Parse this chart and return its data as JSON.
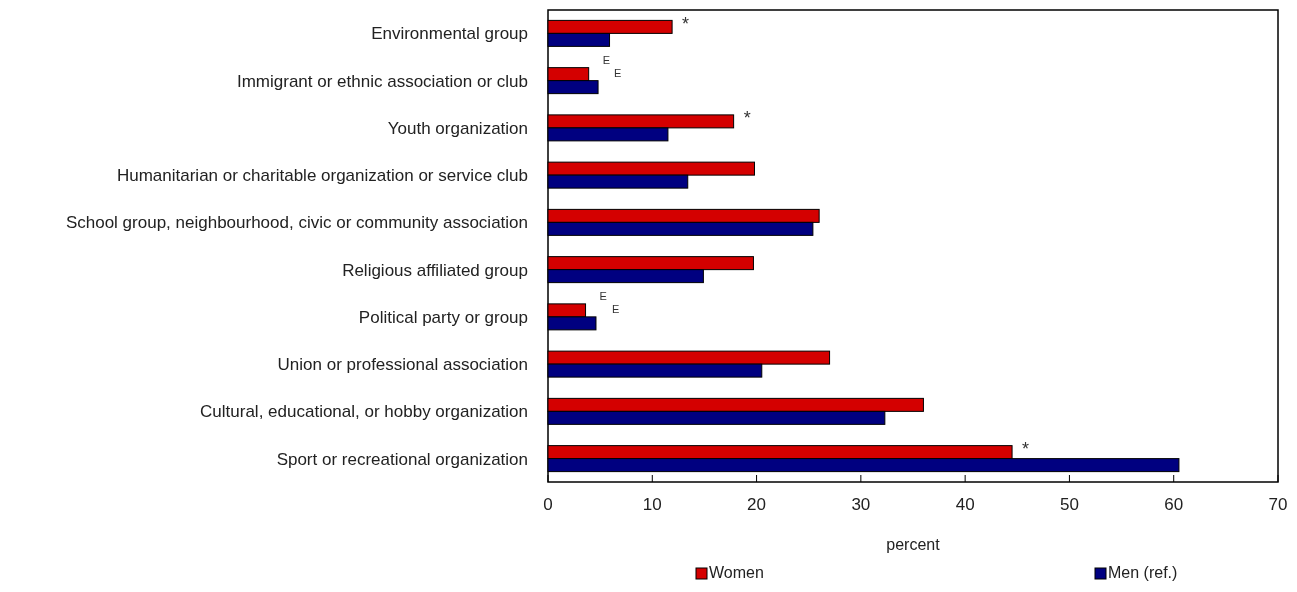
{
  "chart_data": {
    "type": "bar",
    "orientation": "horizontal",
    "categories": [
      "Environmental group",
      "Immigrant or ethnic association or club",
      "Youth organization",
      "Humanitarian or charitable organization or service club",
      "School group, neighbourhood, civic or community association",
      "Religious affiliated group",
      "Political party or group",
      "Union or professional association",
      "Cultural, educational, or hobby organization",
      "Sport or recreational organization"
    ],
    "series": [
      {
        "name": "Women",
        "color": "#d40000",
        "values": [
          11.9,
          3.9,
          17.8,
          19.8,
          26.0,
          19.7,
          3.6,
          27.0,
          36.0,
          44.5
        ]
      },
      {
        "name": "Men (ref.)",
        "color": "#000080",
        "values": [
          5.9,
          4.8,
          11.5,
          13.4,
          25.4,
          14.9,
          4.6,
          20.5,
          32.3,
          60.5
        ]
      }
    ],
    "xlim": [
      0,
      70
    ],
    "xticks": [
      0,
      10,
      20,
      30,
      40,
      50,
      60,
      70
    ],
    "xlabel": "percent",
    "legend": "bottom",
    "grid": false,
    "annotations": [
      {
        "text": "*",
        "x": 11.9,
        "y": "Environmental group"
      },
      {
        "text": "E",
        "x": 3.9,
        "y": "Immigrant or ethnic association or club"
      },
      {
        "text": "E",
        "x": 4.8,
        "y": "Immigrant or ethnic association or club"
      },
      {
        "text": "*",
        "x": 17.8,
        "y": "Youth organization"
      },
      {
        "text": "E",
        "x": 3.6,
        "y": "Political party or group"
      },
      {
        "text": "E",
        "x": 4.6,
        "y": "Political party or group"
      },
      {
        "text": "*",
        "x": 44.5,
        "y": "Sport or recreational organization"
      }
    ]
  }
}
